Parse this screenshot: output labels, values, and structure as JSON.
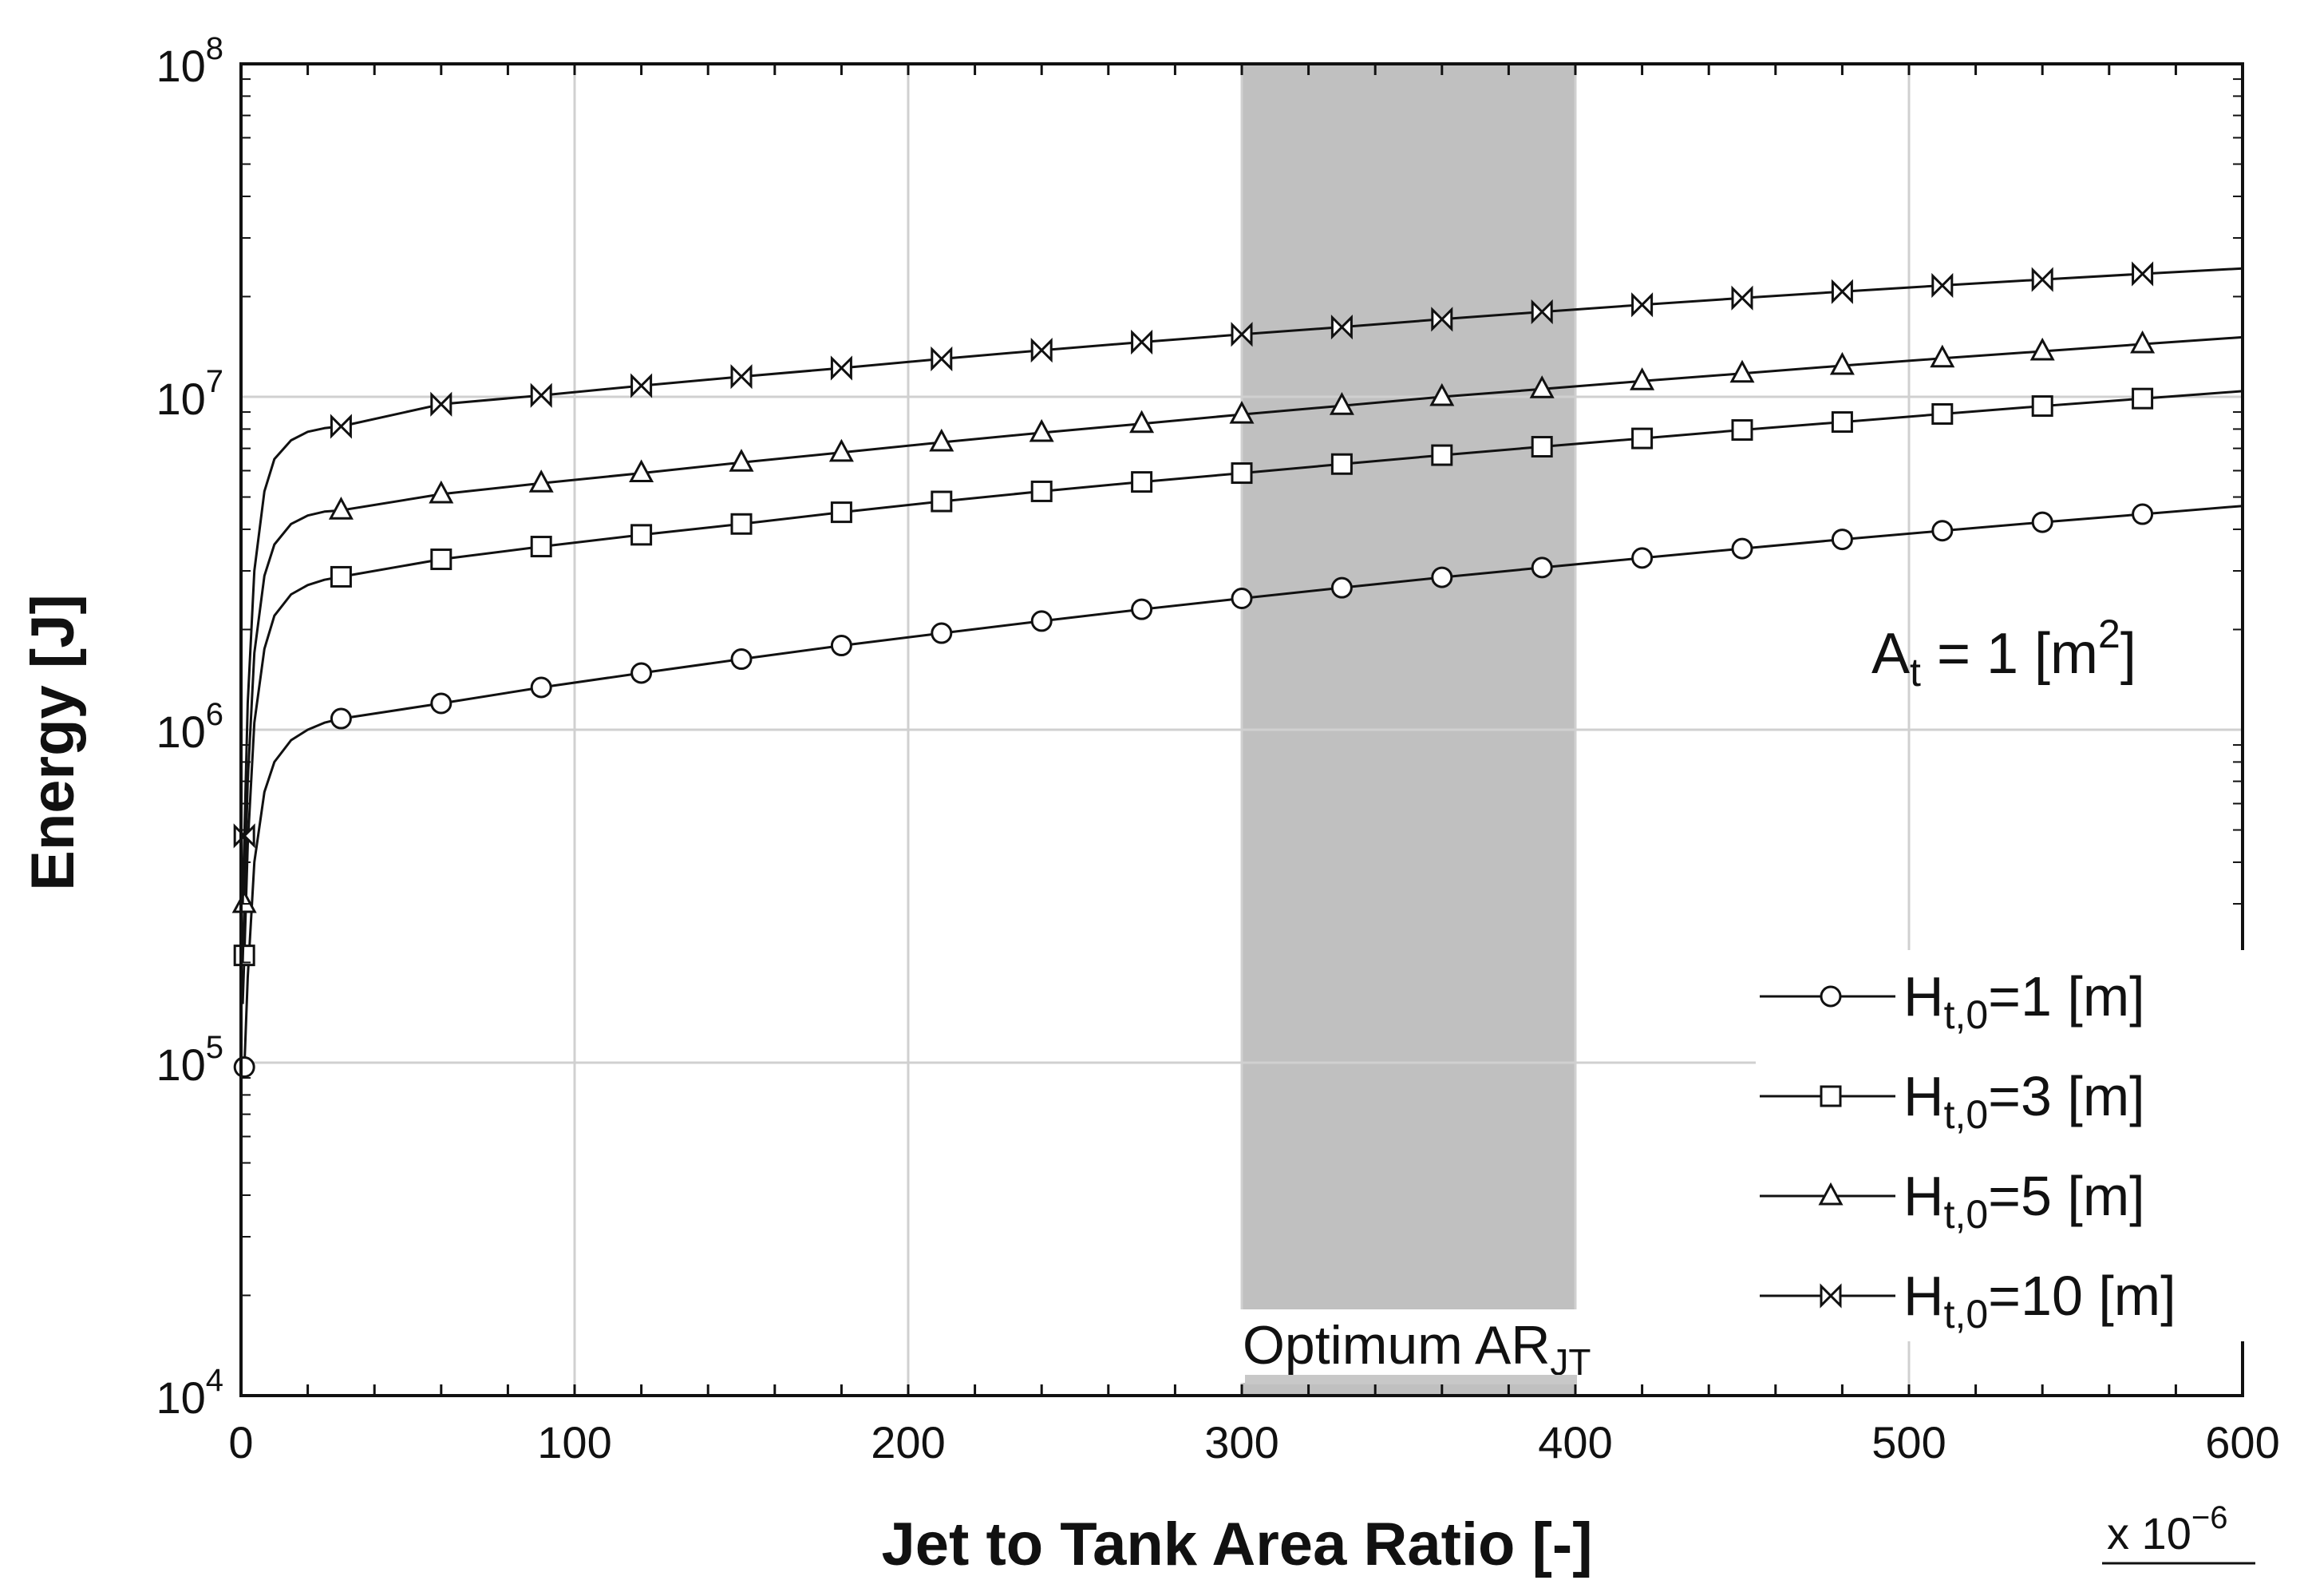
{
  "chart_data": {
    "type": "line",
    "xlabel": "Jet to Tank Area Ratio [-]",
    "ylabel": "Energy [J]",
    "x_multiplier": {
      "base": "x 10",
      "exp": "−6"
    },
    "xlim": [
      0,
      600
    ],
    "ylim": [
      10000,
      100000000
    ],
    "yscale": "log",
    "grid": true,
    "x_ticks": [
      "0",
      "100",
      "200",
      "300",
      "400",
      "500",
      "600"
    ],
    "y_ticks": [
      {
        "base": "10",
        "exp": "4"
      },
      {
        "base": "10",
        "exp": "5"
      },
      {
        "base": "10",
        "exp": "6"
      },
      {
        "base": "10",
        "exp": "7"
      },
      {
        "base": "10",
        "exp": "8"
      }
    ],
    "annotation": {
      "prefix": "A",
      "sub": "t",
      "mid": " = 1 [m",
      "sup": "2",
      "suffix": "]"
    },
    "optimum_band": {
      "x_range": [
        300,
        400
      ],
      "label": "Optimum AR",
      "label_sub": "JT"
    },
    "legend_position": "bottom-right",
    "x": [
      0.5,
      1,
      2,
      4,
      7,
      10,
      15,
      20,
      25,
      30,
      60,
      90,
      120,
      150,
      180,
      210,
      240,
      270,
      300,
      330,
      360,
      390,
      420,
      450,
      480,
      510,
      540,
      570,
      600
    ],
    "marker_x": [
      1,
      30,
      60,
      90,
      120,
      150,
      180,
      210,
      240,
      270,
      300,
      330,
      360,
      390,
      420,
      450,
      480,
      510,
      540,
      570
    ],
    "series": [
      {
        "name": "H",
        "name_sub": "t,0",
        "name_suffix": "=1 [m]",
        "marker": "circle",
        "values": [
          90000,
          97000,
          180000,
          400000,
          650000,
          800000,
          930000,
          1000000,
          1050000,
          1080000,
          1200000,
          1340000,
          1480000,
          1630000,
          1790000,
          1950000,
          2120000,
          2300000,
          2480000,
          2670000,
          2870000,
          3070000,
          3280000,
          3500000,
          3730000,
          3960000,
          4200000,
          4440000,
          4700000
        ]
      },
      {
        "name": "H",
        "name_sub": "t,0",
        "name_suffix": "=3 [m]",
        "marker": "square",
        "values": [
          150000,
          210000,
          450000,
          1050000,
          1750000,
          2200000,
          2550000,
          2720000,
          2820000,
          2880000,
          3250000,
          3550000,
          3850000,
          4150000,
          4500000,
          4850000,
          5200000,
          5550000,
          5900000,
          6280000,
          6680000,
          7080000,
          7500000,
          7950000,
          8400000,
          8880000,
          9380000,
          9880000,
          10400000
        ]
      },
      {
        "name": "H",
        "name_sub": "t,0",
        "name_suffix": "=5 [m]",
        "marker": "triangle",
        "values": [
          200000,
          300000,
          700000,
          1700000,
          2900000,
          3600000,
          4150000,
          4400000,
          4520000,
          4560000,
          5100000,
          5500000,
          5900000,
          6350000,
          6800000,
          7300000,
          7800000,
          8300000,
          8850000,
          9400000,
          10000000,
          10550000,
          11150000,
          11750000,
          12400000,
          13050000,
          13700000,
          14400000,
          15100000
        ]
      },
      {
        "name": "H",
        "name_sub": "t,0",
        "name_suffix": "=10 [m]",
        "marker": "bowtie",
        "values": [
          300000,
          480000,
          1200000,
          3000000,
          5200000,
          6500000,
          7400000,
          7850000,
          8050000,
          8150000,
          9500000,
          10100000,
          10800000,
          11500000,
          12200000,
          13000000,
          13800000,
          14600000,
          15400000,
          16200000,
          17100000,
          18000000,
          18900000,
          19800000,
          20700000,
          21600000,
          22500000,
          23400000,
          24300000
        ]
      }
    ]
  }
}
